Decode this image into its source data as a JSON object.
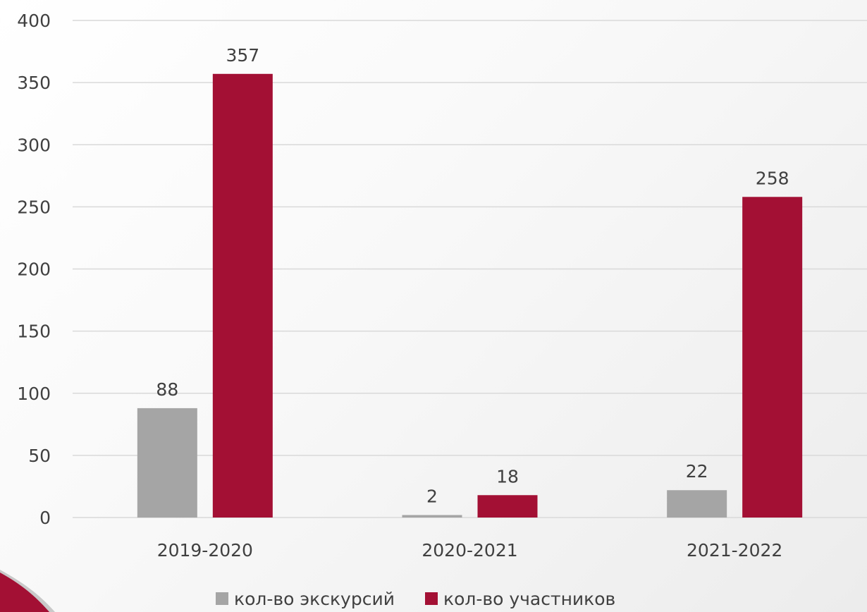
{
  "chart_data": {
    "type": "bar",
    "categories": [
      "2019-2020",
      "2020-2021",
      "2021-2022"
    ],
    "series": [
      {
        "name": "кол-во экскурсий",
        "values": [
          88,
          2,
          22
        ],
        "color": "#a5a5a5"
      },
      {
        "name": "кол-во участников",
        "values": [
          357,
          18,
          258
        ],
        "color": "#a31034"
      }
    ],
    "ylim": [
      0,
      400
    ],
    "yticks": [
      0,
      50,
      100,
      150,
      200,
      250,
      300,
      350,
      400
    ],
    "grid": true,
    "legend": "bottom",
    "data_labels": true
  },
  "decoration": {
    "accent_color": "#a31034"
  }
}
